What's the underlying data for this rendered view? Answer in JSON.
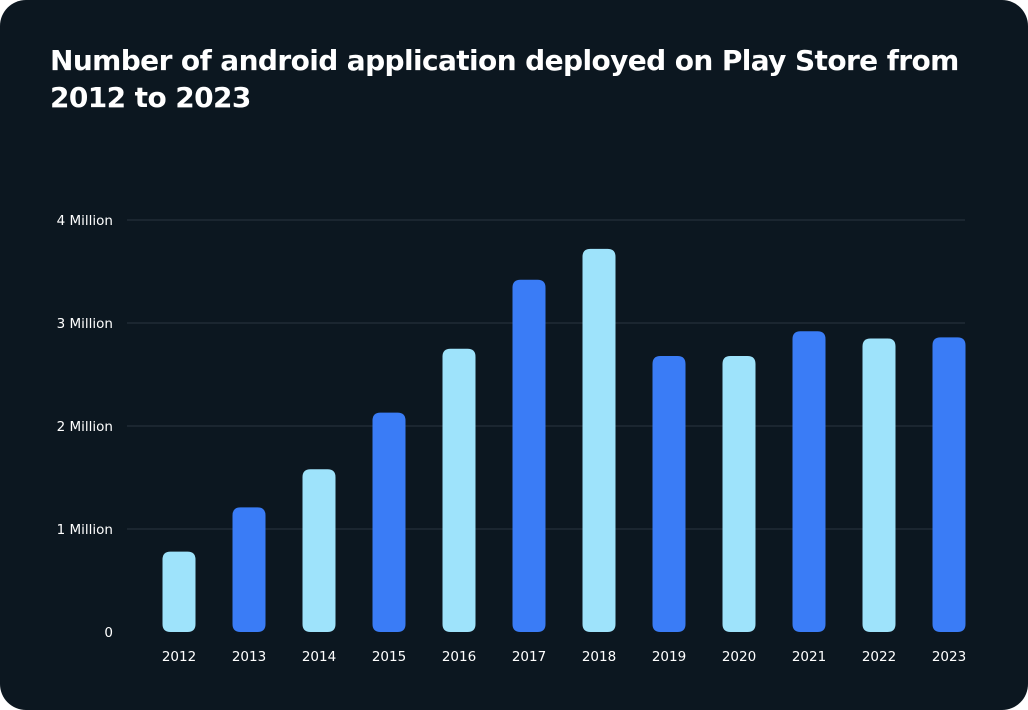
{
  "chart_data": {
    "type": "bar",
    "title": "Number of android application deployed on Play Store from 2012 to 2023",
    "xlabel": "",
    "ylabel": "",
    "categories": [
      "2012",
      "2013",
      "2014",
      "2015",
      "2016",
      "2017",
      "2018",
      "2019",
      "2020",
      "2021",
      "2022",
      "2023"
    ],
    "values": [
      0.78,
      1.21,
      1.58,
      2.13,
      2.75,
      3.42,
      3.72,
      2.68,
      2.68,
      2.92,
      2.85,
      2.86
    ],
    "value_unit": "Million",
    "ylim": [
      0,
      4
    ],
    "yticks": [
      {
        "value": 0,
        "label": "0"
      },
      {
        "value": 1,
        "label": "1 Million"
      },
      {
        "value": 2,
        "label": "2 Million"
      },
      {
        "value": 3,
        "label": "3 Million"
      },
      {
        "value": 4,
        "label": "4 Million"
      }
    ],
    "grid": true,
    "legend": "none",
    "colors": {
      "background": "#0c1720",
      "grid": "#2a3540",
      "text": "#ffffff",
      "bar_light": "#9ee3fb",
      "bar_dark": "#3a7cf6"
    },
    "bar_colors": [
      "#9ee3fb",
      "#3a7cf6",
      "#9ee3fb",
      "#3a7cf6",
      "#9ee3fb",
      "#3a7cf6",
      "#9ee3fb",
      "#3a7cf6",
      "#9ee3fb",
      "#3a7cf6",
      "#9ee3fb",
      "#3a7cf6"
    ]
  }
}
